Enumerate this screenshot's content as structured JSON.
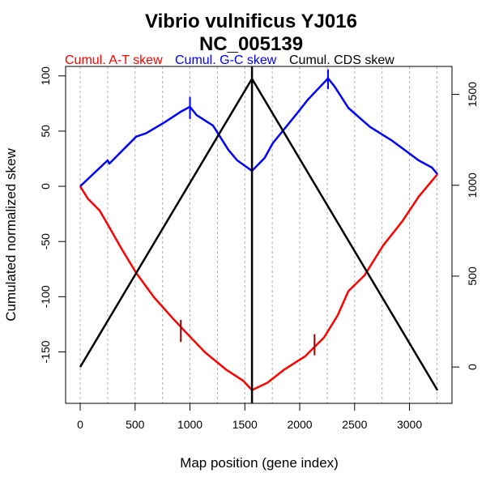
{
  "chart_data": {
    "type": "line",
    "title": "Vibrio vulnificus YJ016",
    "subtitle": "NC_005139",
    "xlabel": "Map position (gene index)",
    "ylabel": "Cumulated normalized skew",
    "xlim": [
      -133,
      3387
    ],
    "ylim": [
      -196.6,
      108.6
    ],
    "y2lim": [
      -200,
      1654
    ],
    "xticks": [
      "0",
      "500",
      "1000",
      "1500",
      "2000",
      "2500",
      "3000"
    ],
    "xtick_values": [
      0,
      500,
      1000,
      1500,
      2000,
      2500,
      3000
    ],
    "yticks": [
      "-150",
      "-100",
      "-50",
      "0",
      "50",
      "100"
    ],
    "ytick_values": [
      -150,
      -100,
      -50,
      0,
      50,
      100
    ],
    "y2ticks": [
      "0",
      "500",
      "1000",
      "1500"
    ],
    "y2tick_values": [
      0,
      500,
      1000,
      1500
    ],
    "grid_x": [
      0,
      250,
      500,
      750,
      1000,
      1250,
      1500,
      1750,
      2000,
      2250,
      2500,
      2750,
      3000,
      3250
    ],
    "legend": [
      {
        "label": "Cumul. A-T skew",
        "color": "#ff0000"
      },
      {
        "label": "Cumul. G-C skew",
        "color": "#0000ff"
      },
      {
        "label": "Cumul. CDS skew",
        "color": "#000000"
      }
    ],
    "series": [
      {
        "name": "Cumul. A-T skew",
        "color": "#ff0000",
        "axis": "left",
        "x": [
          0,
          68,
          177,
          250,
          376,
          510,
          672,
          843,
          979,
          1137,
          1335,
          1483,
          1565,
          1705,
          1852,
          2049,
          2221,
          2345,
          2443,
          2590,
          2760,
          2935,
          3083,
          3255
        ],
        "y": [
          0,
          -11,
          -22,
          -34.5,
          -56.5,
          -78.5,
          -100.5,
          -119.6,
          -134,
          -150.4,
          -166.5,
          -176,
          -184.6,
          -178,
          -166.5,
          -154,
          -137,
          -117,
          -95,
          -80.7,
          -53.6,
          -31.6,
          -9.5,
          11
        ]
      },
      {
        "name": "Cumul. G-C skew",
        "color": "#0000ff",
        "axis": "left",
        "x": [
          0,
          250,
          265,
          510,
          600,
          770,
          915,
          1000,
          1060,
          1210,
          1350,
          1430,
          1565,
          1680,
          1754,
          1975,
          2074,
          2258,
          2317,
          2443,
          2640,
          2834,
          3083,
          3204,
          3255
        ],
        "y": [
          0,
          23.5,
          20.5,
          45,
          48,
          58,
          67.5,
          72,
          64.5,
          55,
          33,
          23.5,
          14,
          25.7,
          39,
          66,
          78.5,
          97.8,
          90.5,
          71,
          53.8,
          41.8,
          23.5,
          17,
          11
        ]
      },
      {
        "name": "Cumul. CDS skew",
        "color": "#000000",
        "axis": "right",
        "x": [
          0,
          1565,
          3255
        ],
        "y": [
          0,
          1586,
          -128
        ]
      }
    ],
    "vline_x": 1565,
    "markers": [
      {
        "series": "Cumul. G-C skew",
        "x": 1000,
        "y_range": [
          61,
          81
        ],
        "color": "#0000ff"
      },
      {
        "series": "Cumul. G-C skew",
        "x": 2258,
        "y_range": [
          88,
          106
        ],
        "color": "#0000ff"
      },
      {
        "series": "Cumul. A-T skew",
        "x": 917,
        "y_range": [
          -141,
          -121
        ],
        "color": "#8b0000"
      },
      {
        "series": "Cumul. A-T skew",
        "x": 2135,
        "y_range": [
          -153,
          -134
        ],
        "color": "#8b0000"
      }
    ]
  }
}
